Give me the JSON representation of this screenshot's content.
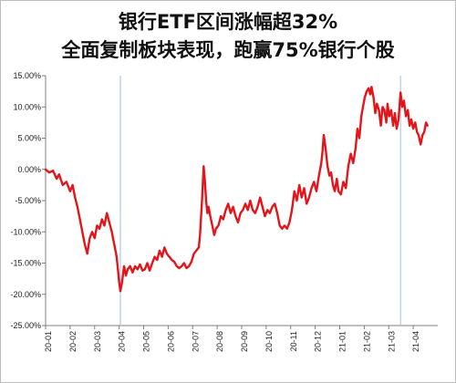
{
  "chart_data": {
    "type": "line",
    "title_lines": [
      "银行ETF区间涨幅超32%",
      "全面复制板块表现，跑赢75%银行个股"
    ],
    "xlabel": "",
    "ylabel": "",
    "ylim": [
      -25,
      15
    ],
    "y_ticks": [
      15,
      10,
      5,
      0,
      -5,
      -10,
      -15,
      -20,
      -25
    ],
    "y_tick_labels": [
      "15.00%",
      "10.00%",
      "5.00%",
      "0.00%",
      "-5.00%",
      "-10.00%",
      "-15.00%",
      "-20.00%",
      "-25.00%"
    ],
    "x_tick_labels": [
      "20-01",
      "20-02",
      "20-03",
      "20-04",
      "20-05",
      "20-06",
      "20-07",
      "20-08",
      "20-09",
      "20-10",
      "20-11",
      "20-12",
      "21-01",
      "21-02",
      "21-03",
      "21-04"
    ],
    "xlim": [
      0,
      16
    ],
    "grid": false,
    "legend": "none",
    "vlines_x": [
      3.05,
      14.48
    ],
    "series": [
      {
        "color": "#e3151a",
        "points": [
          [
            0.0,
            0.0
          ],
          [
            0.15,
            -0.5
          ],
          [
            0.3,
            -0.2
          ],
          [
            0.45,
            -1.5
          ],
          [
            0.55,
            -0.8
          ],
          [
            0.7,
            -2.5
          ],
          [
            0.85,
            -2.0
          ],
          [
            1.0,
            -3.5
          ],
          [
            1.1,
            -2.5
          ],
          [
            1.2,
            -4.5
          ],
          [
            1.3,
            -6.0
          ],
          [
            1.4,
            -8.0
          ],
          [
            1.5,
            -10.0
          ],
          [
            1.6,
            -12.0
          ],
          [
            1.7,
            -13.5
          ],
          [
            1.8,
            -11.0
          ],
          [
            1.9,
            -10.0
          ],
          [
            2.0,
            -11.0
          ],
          [
            2.1,
            -9.0
          ],
          [
            2.2,
            -9.5
          ],
          [
            2.3,
            -8.0
          ],
          [
            2.4,
            -9.0
          ],
          [
            2.5,
            -7.0
          ],
          [
            2.6,
            -8.5
          ],
          [
            2.7,
            -10.0
          ],
          [
            2.75,
            -11.0
          ],
          [
            2.8,
            -12.0
          ],
          [
            2.9,
            -14.0
          ],
          [
            2.95,
            -16.0
          ],
          [
            3.0,
            -18.0
          ],
          [
            3.05,
            -19.5
          ],
          [
            3.12,
            -18.0
          ],
          [
            3.2,
            -15.5
          ],
          [
            3.28,
            -17.0
          ],
          [
            3.35,
            -16.0
          ],
          [
            3.45,
            -15.5
          ],
          [
            3.55,
            -16.5
          ],
          [
            3.65,
            -15.5
          ],
          [
            3.75,
            -16.0
          ],
          [
            3.85,
            -15.2
          ],
          [
            3.95,
            -16.2
          ],
          [
            4.05,
            -16.0
          ],
          [
            4.15,
            -15.0
          ],
          [
            4.25,
            -16.2
          ],
          [
            4.35,
            -15.0
          ],
          [
            4.45,
            -14.0
          ],
          [
            4.55,
            -14.5
          ],
          [
            4.65,
            -13.0
          ],
          [
            4.75,
            -14.0
          ],
          [
            4.85,
            -12.5
          ],
          [
            4.95,
            -13.5
          ],
          [
            5.05,
            -14.0
          ],
          [
            5.15,
            -14.5
          ],
          [
            5.25,
            -14.8
          ],
          [
            5.35,
            -15.5
          ],
          [
            5.45,
            -15.8
          ],
          [
            5.55,
            -15.5
          ],
          [
            5.65,
            -15.0
          ],
          [
            5.75,
            -15.8
          ],
          [
            5.85,
            -15.5
          ],
          [
            5.95,
            -14.8
          ],
          [
            6.05,
            -13.5
          ],
          [
            6.15,
            -13.0
          ],
          [
            6.25,
            -12.5
          ],
          [
            6.3,
            -10.5
          ],
          [
            6.38,
            -5.0
          ],
          [
            6.45,
            0.5
          ],
          [
            6.5,
            -2.0
          ],
          [
            6.55,
            -5.0
          ],
          [
            6.6,
            -7.0
          ],
          [
            6.65,
            -6.0
          ],
          [
            6.72,
            -7.5
          ],
          [
            6.8,
            -9.0
          ],
          [
            6.88,
            -10.5
          ],
          [
            6.95,
            -9.5
          ],
          [
            7.05,
            -9.0
          ],
          [
            7.15,
            -7.5
          ],
          [
            7.25,
            -8.0
          ],
          [
            7.35,
            -6.5
          ],
          [
            7.45,
            -5.5
          ],
          [
            7.55,
            -7.0
          ],
          [
            7.65,
            -6.0
          ],
          [
            7.75,
            -7.5
          ],
          [
            7.85,
            -8.5
          ],
          [
            7.95,
            -7.0
          ],
          [
            8.05,
            -6.5
          ],
          [
            8.15,
            -5.5
          ],
          [
            8.25,
            -6.5
          ],
          [
            8.35,
            -5.0
          ],
          [
            8.45,
            -6.5
          ],
          [
            8.55,
            -7.0
          ],
          [
            8.65,
            -6.0
          ],
          [
            8.75,
            -4.5
          ],
          [
            8.85,
            -6.0
          ],
          [
            8.95,
            -7.5
          ],
          [
            9.05,
            -6.5
          ],
          [
            9.15,
            -7.0
          ],
          [
            9.25,
            -6.0
          ],
          [
            9.35,
            -5.5
          ],
          [
            9.45,
            -7.0
          ],
          [
            9.55,
            -9.0
          ],
          [
            9.65,
            -9.5
          ],
          [
            9.75,
            -9.0
          ],
          [
            9.85,
            -9.5
          ],
          [
            9.95,
            -8.5
          ],
          [
            10.05,
            -6.5
          ],
          [
            10.15,
            -3.5
          ],
          [
            10.25,
            -5.0
          ],
          [
            10.35,
            -2.5
          ],
          [
            10.45,
            -4.5
          ],
          [
            10.55,
            -3.0
          ],
          [
            10.65,
            -5.5
          ],
          [
            10.75,
            -4.5
          ],
          [
            10.85,
            -3.0
          ],
          [
            10.95,
            -2.0
          ],
          [
            11.05,
            -3.5
          ],
          [
            11.15,
            -1.0
          ],
          [
            11.25,
            1.0
          ],
          [
            11.3,
            3.0
          ],
          [
            11.35,
            5.5
          ],
          [
            11.42,
            3.5
          ],
          [
            11.5,
            0.5
          ],
          [
            11.58,
            -1.0
          ],
          [
            11.65,
            -0.5
          ],
          [
            11.72,
            -2.5
          ],
          [
            11.8,
            -3.5
          ],
          [
            11.88,
            -1.5
          ],
          [
            11.95,
            -3.5
          ],
          [
            12.05,
            -4.0
          ],
          [
            12.15,
            -2.0
          ],
          [
            12.25,
            -3.0
          ],
          [
            12.35,
            0.5
          ],
          [
            12.45,
            2.5
          ],
          [
            12.55,
            1.0
          ],
          [
            12.65,
            3.5
          ],
          [
            12.72,
            6.5
          ],
          [
            12.8,
            5.0
          ],
          [
            12.88,
            8.5
          ],
          [
            12.95,
            10.0
          ],
          [
            13.02,
            11.5
          ],
          [
            13.1,
            12.5
          ],
          [
            13.18,
            13.0
          ],
          [
            13.25,
            12.0
          ],
          [
            13.3,
            13.2
          ],
          [
            13.38,
            11.5
          ],
          [
            13.45,
            9.0
          ],
          [
            13.52,
            10.5
          ],
          [
            13.6,
            9.5
          ],
          [
            13.68,
            7.0
          ],
          [
            13.75,
            10.0
          ],
          [
            13.82,
            9.5
          ],
          [
            13.9,
            7.5
          ],
          [
            13.95,
            10.5
          ],
          [
            14.02,
            8.5
          ],
          [
            14.1,
            9.5
          ],
          [
            14.18,
            7.0
          ],
          [
            14.25,
            9.0
          ],
          [
            14.32,
            6.5
          ],
          [
            14.4,
            8.0
          ],
          [
            14.48,
            12.3
          ],
          [
            14.55,
            10.0
          ],
          [
            14.62,
            11.0
          ],
          [
            14.7,
            8.5
          ],
          [
            14.78,
            9.5
          ],
          [
            14.85,
            7.0
          ],
          [
            14.92,
            8.0
          ],
          [
            15.0,
            6.5
          ],
          [
            15.08,
            7.5
          ],
          [
            15.15,
            6.0
          ],
          [
            15.22,
            5.5
          ],
          [
            15.3,
            4.0
          ],
          [
            15.38,
            5.5
          ],
          [
            15.45,
            6.0
          ],
          [
            15.52,
            7.5
          ],
          [
            15.58,
            7.0
          ]
        ]
      }
    ]
  }
}
